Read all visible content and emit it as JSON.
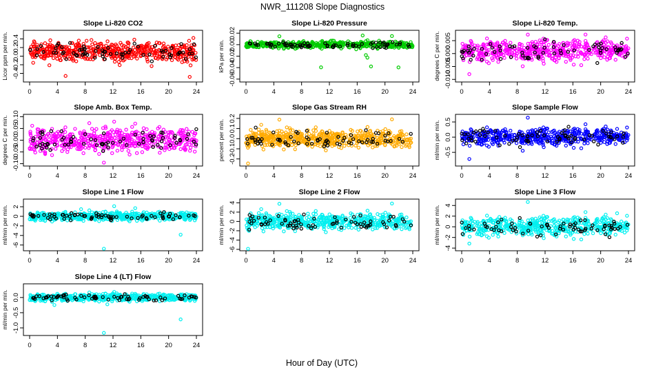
{
  "figure": {
    "title": "NWR_111208  Slope Diagnostics",
    "xlabel": "Hour of Day (UTC)"
  },
  "chart_data": [
    {
      "type": "scatter",
      "title": "Slope Li-820 CO2",
      "ylabel": "Licor ppm per min.",
      "xlim": [
        0,
        24
      ],
      "xticks": [
        0,
        4,
        8,
        12,
        16,
        20,
        24
      ],
      "ylim": [
        -0.6,
        0.6
      ],
      "yticks": [
        -0.4,
        -0.2,
        0.0,
        0.2,
        0.4
      ],
      "ytick_labels": [
        "-0.4",
        "-0.2",
        "0.0",
        "0.2",
        "0.4"
      ],
      "color": "#ff0000",
      "points_summary": {
        "center": 0.1,
        "spread": 0.15,
        "min": -0.55,
        "max": 0.55
      },
      "series": [
        {
          "color": "#ff0000"
        },
        {
          "color": "#000000"
        }
      ]
    },
    {
      "type": "scatter",
      "title": "Slope Li-820 Pressure",
      "ylabel": "kPa per min.",
      "xlim": [
        0,
        24
      ],
      "xticks": [
        0,
        4,
        8,
        12,
        16,
        20,
        24
      ],
      "ylim": [
        -0.065,
        0.025
      ],
      "yticks": [
        -0.06,
        -0.04,
        -0.02,
        0.0,
        0.02
      ],
      "ytick_labels": [
        "-0.06",
        "-0.04",
        "-0.02",
        "0.00",
        "0.02"
      ],
      "color": "#00cc00",
      "points_summary": {
        "center": 0.0,
        "spread": 0.004,
        "min": -0.06,
        "max": 0.02
      },
      "series": [
        {
          "color": "#00cc00"
        },
        {
          "color": "#000000"
        }
      ]
    },
    {
      "type": "scatter",
      "title": "Slope Li-820 Temp.",
      "ylabel": "degrees C per min.",
      "xlim": [
        0,
        24
      ],
      "xticks": [
        0,
        4,
        8,
        12,
        16,
        20,
        24
      ],
      "ylim": [
        -0.011,
        0.009
      ],
      "yticks": [
        -0.01,
        -0.005,
        0.0,
        0.005
      ],
      "ytick_labels": [
        "-0.010",
        "-0.005",
        "0.000",
        "0.005"
      ],
      "color": "#ff00ff",
      "points_summary": {
        "center": 0.001,
        "spread": 0.003,
        "min": -0.01,
        "max": 0.008
      },
      "series": [
        {
          "color": "#ff00ff"
        },
        {
          "color": "#000000"
        }
      ]
    },
    {
      "type": "scatter",
      "title": "Slope Amb. Box Temp.",
      "ylabel": "degrees C per min.",
      "xlim": [
        0,
        24
      ],
      "xticks": [
        0,
        4,
        8,
        12,
        16,
        20,
        24
      ],
      "ylim": [
        -0.11,
        0.11
      ],
      "yticks": [
        -0.1,
        -0.05,
        0.0,
        0.05,
        0.1
      ],
      "ytick_labels": [
        "-0.10",
        "-0.05",
        "0.00",
        "0.05",
        "0.10"
      ],
      "color": "#ff00ff",
      "points_summary": {
        "center": 0.0,
        "spread": 0.035,
        "min": -0.1,
        "max": 0.1
      },
      "series": [
        {
          "color": "#ff00ff"
        },
        {
          "color": "#000000"
        }
      ]
    },
    {
      "type": "scatter",
      "title": "Slope Gas Stream RH",
      "ylabel": "percent per min.",
      "xlim": [
        0,
        24
      ],
      "xticks": [
        0,
        4,
        8,
        12,
        16,
        20,
        24
      ],
      "ylim": [
        -0.27,
        0.24
      ],
      "yticks": [
        -0.2,
        -0.1,
        0.0,
        0.1,
        0.2
      ],
      "ytick_labels": [
        "-0.2",
        "-0.1",
        "0.0",
        "0.1",
        "0.2"
      ],
      "color": "#ffaa00",
      "points_summary": {
        "center": 0.0,
        "spread": 0.06,
        "min": -0.25,
        "max": 0.22
      },
      "series": [
        {
          "color": "#ffaa00"
        },
        {
          "color": "#000000"
        }
      ]
    },
    {
      "type": "scatter",
      "title": "Slope Sample Flow",
      "ylabel": "ml/min per min.",
      "xlim": [
        0,
        24
      ],
      "xticks": [
        0,
        4,
        8,
        12,
        16,
        20,
        24
      ],
      "ylim": [
        -0.95,
        0.75
      ],
      "yticks": [
        -0.5,
        0.0,
        0.5
      ],
      "ytick_labels": [
        "-0.5",
        "0.0",
        "0.5"
      ],
      "color": "#0000ff",
      "points_summary": {
        "center": 0.0,
        "spread": 0.2,
        "min": -0.9,
        "max": 0.7
      },
      "series": [
        {
          "color": "#0000ff"
        },
        {
          "color": "#000000"
        }
      ]
    },
    {
      "type": "scatter",
      "title": "Slope Line 1 Flow",
      "ylabel": "ml/min per min.",
      "xlim": [
        0,
        24
      ],
      "xticks": [
        0,
        4,
        8,
        12,
        16,
        20,
        24
      ],
      "ylim": [
        -7.2,
        3.6
      ],
      "yticks": [
        -6,
        -4,
        -2,
        0,
        2
      ],
      "ytick_labels": [
        "-6",
        "-4",
        "-2",
        "0",
        "2"
      ],
      "color": "#00f0f0",
      "points_summary": {
        "center": 0.0,
        "spread": 0.6,
        "min": -7.0,
        "max": 3.2
      },
      "series": [
        {
          "color": "#00f0f0"
        },
        {
          "color": "#000000"
        }
      ]
    },
    {
      "type": "scatter",
      "title": "Slope Line 2 Flow",
      "ylabel": "ml/min per min.",
      "xlim": [
        0,
        24
      ],
      "xticks": [
        0,
        4,
        8,
        12,
        16,
        20,
        24
      ],
      "ylim": [
        -6.3,
        4.8
      ],
      "yticks": [
        -6,
        -4,
        -2,
        0,
        2,
        4
      ],
      "ytick_labels": [
        "-6",
        "-4",
        "-2",
        "0",
        "2",
        "4"
      ],
      "color": "#00f0f0",
      "points_summary": {
        "center": 0.0,
        "spread": 1.2,
        "min": -6.0,
        "max": 4.5
      },
      "series": [
        {
          "color": "#00f0f0"
        },
        {
          "color": "#000000"
        }
      ]
    },
    {
      "type": "scatter",
      "title": "Slope Line 3 Flow",
      "ylabel": "ml/min per min.",
      "xlim": [
        0,
        24
      ],
      "xticks": [
        0,
        4,
        8,
        12,
        16,
        20,
        24
      ],
      "ylim": [
        -4.5,
        5.2
      ],
      "yticks": [
        -4,
        -2,
        0,
        2,
        4
      ],
      "ytick_labels": [
        "-4",
        "-2",
        "0",
        "2",
        "4"
      ],
      "color": "#00f0f0",
      "points_summary": {
        "center": 0.0,
        "spread": 1.3,
        "min": -4.2,
        "max": 5.0
      },
      "series": [
        {
          "color": "#00f0f0"
        },
        {
          "color": "#000000"
        }
      ]
    },
    {
      "type": "scatter",
      "title": "Slope Line 4 (LT) Flow",
      "ylabel": "ml/min per min.",
      "xlim": [
        0,
        24
      ],
      "xticks": [
        0,
        4,
        8,
        12,
        16,
        20,
        24
      ],
      "ylim": [
        -1.25,
        0.45
      ],
      "yticks": [
        -1.0,
        -0.5,
        0.0
      ],
      "ytick_labels": [
        "-1.0",
        "-0.5",
        "0.0"
      ],
      "color": "#00f0f0",
      "points_summary": {
        "center": 0.0,
        "spread": 0.08,
        "min": -1.2,
        "max": 0.35
      },
      "series": [
        {
          "color": "#00f0f0"
        },
        {
          "color": "#000000"
        }
      ]
    }
  ]
}
